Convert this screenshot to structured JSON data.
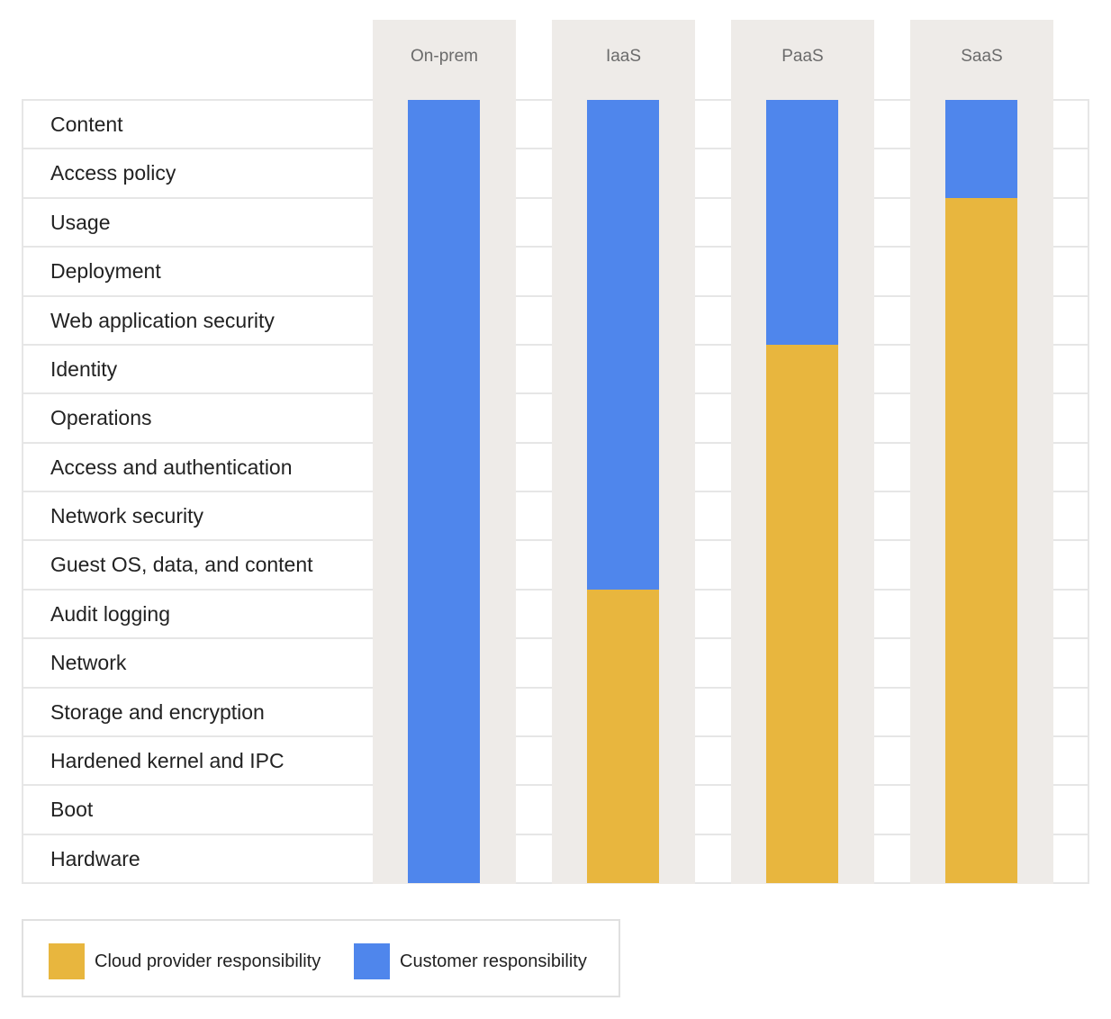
{
  "chart_data": {
    "type": "table",
    "title": "",
    "colors": {
      "cloud": "#E8B63E",
      "customer": "#4F86EC"
    },
    "rows": [
      "Content",
      "Access policy",
      "Usage",
      "Deployment",
      "Web application security",
      "Identity",
      "Operations",
      "Access and authentication",
      "Network security",
      "Guest OS, data, and content",
      "Audit logging",
      "Network",
      "Storage and encryption",
      "Hardened kernel and IPC",
      "Boot",
      "Hardware"
    ],
    "columns": [
      {
        "name": "On-prem",
        "customer_rows": 16,
        "cloud_rows": 0
      },
      {
        "name": "IaaS",
        "customer_rows": 10,
        "cloud_rows": 6
      },
      {
        "name": "PaaS",
        "customer_rows": 5,
        "cloud_rows": 11
      },
      {
        "name": "SaaS",
        "customer_rows": 2,
        "cloud_rows": 14
      }
    ],
    "legend": [
      {
        "key": "cloud",
        "label": "Cloud provider responsibility"
      },
      {
        "key": "customer",
        "label": "Customer responsibility"
      }
    ]
  }
}
